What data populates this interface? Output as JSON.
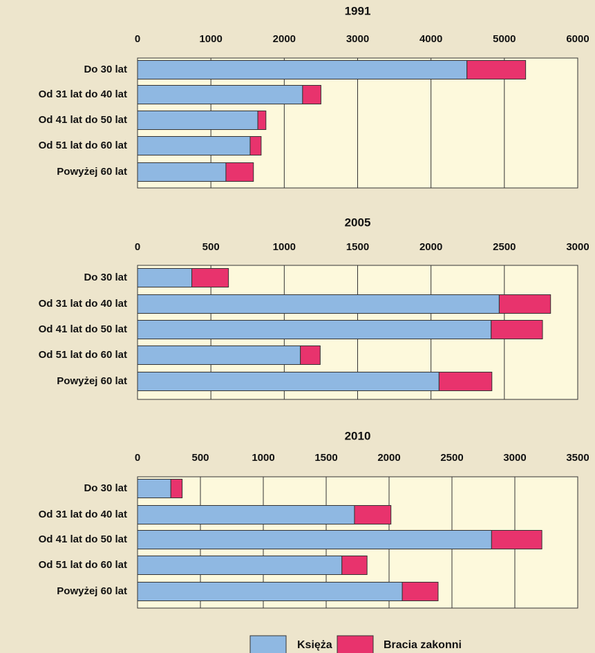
{
  "chart_data": [
    {
      "type": "stacked-bar",
      "title": "1991",
      "categories": [
        "Do 30 lat",
        "Od 31 lat do 40 lat",
        "Od 41 lat do 50 lat",
        "Od 51 lat do 60 lat",
        "Powyżej 60 lat"
      ],
      "series": [
        {
          "name": "Księża",
          "color": "#8fb8e2",
          "values": [
            4490,
            2250,
            1640,
            1535,
            1205
          ]
        },
        {
          "name": "Bracia zakonni",
          "color": "#e8336d",
          "values": [
            800,
            250,
            110,
            150,
            375
          ]
        }
      ],
      "xlim": [
        0,
        6000
      ],
      "xticks": [
        0,
        1000,
        2000,
        3000,
        4000,
        5000,
        6000
      ],
      "grid": true
    },
    {
      "type": "stacked-bar",
      "title": "2005",
      "categories": [
        "Do 30 lat",
        "Od 31 lat do 40 lat",
        "Od 41 lat do 50 lat",
        "Od 51 lat do 60 lat",
        "Powyżej 60 lat"
      ],
      "series": [
        {
          "name": "Księża",
          "color": "#8fb8e2",
          "values": [
            370,
            2465,
            2410,
            1110,
            2055
          ]
        },
        {
          "name": "Bracia zakonni",
          "color": "#e8336d",
          "values": [
            250,
            350,
            350,
            135,
            360
          ]
        }
      ],
      "xlim": [
        0,
        3000
      ],
      "xticks": [
        0,
        500,
        1000,
        1500,
        2000,
        2500,
        3000
      ],
      "grid": true
    },
    {
      "type": "stacked-bar",
      "title": "2010",
      "categories": [
        "Do 30 lat",
        "Od 31 lat do 40 lat",
        "Od 41 lat do 50 lat",
        "Od 51 lat do 60 lat",
        "Powyżej 60 lat"
      ],
      "series": [
        {
          "name": "Księża",
          "color": "#8fb8e2",
          "values": [
            265,
            1725,
            2815,
            1625,
            2105
          ]
        },
        {
          "name": "Bracia zakonni",
          "color": "#e8336d",
          "values": [
            90,
            290,
            400,
            200,
            285
          ]
        }
      ],
      "xlim": [
        0,
        3500
      ],
      "xticks": [
        0,
        500,
        1000,
        1500,
        2000,
        2500,
        3000,
        3500
      ],
      "grid": true
    }
  ]
}
